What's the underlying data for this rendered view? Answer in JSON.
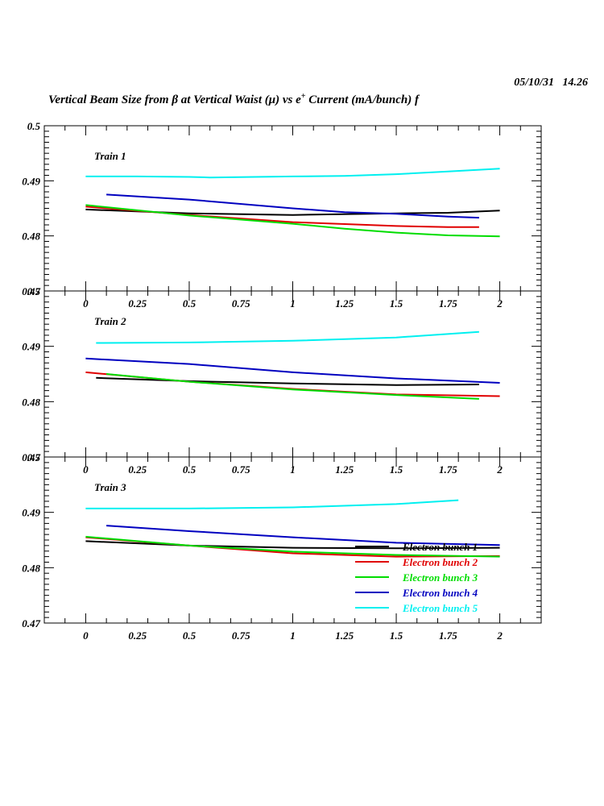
{
  "stamp": "05/10/31   14.26",
  "title": {
    "pre": "Vertical Beam Size from β at Vertical Waist (μ) vs e",
    "sup": "+",
    "post": " Current (mA/bunch) f"
  },
  "colors": {
    "bunch1": "#000000",
    "bunch2": "#e00000",
    "bunch3": "#00dd00",
    "bunch4": "#0000c0",
    "bunch5": "#00f0f0"
  },
  "chart_data": [
    {
      "type": "line",
      "label": "Train 1",
      "xlim": [
        -0.2,
        2.2
      ],
      "ylim": [
        0.47,
        0.5
      ],
      "x_ticks": [
        "0",
        "0.25",
        "0.5",
        "0.75",
        "1",
        "1.25",
        "1.5",
        "1.75",
        "2"
      ],
      "y_ticks": [
        "0.5",
        "0.49",
        "0.48",
        "0.47"
      ],
      "grid": false,
      "series": [
        {
          "key": "bunch1",
          "x": [
            0,
            0.5,
            1,
            1.5,
            1.75,
            2
          ],
          "y": [
            0.4848,
            0.4841,
            0.4838,
            0.4841,
            0.4842,
            0.4846
          ]
        },
        {
          "key": "bunch2",
          "x": [
            0,
            0.5,
            1,
            1.5,
            1.75,
            1.9
          ],
          "y": [
            0.4853,
            0.4838,
            0.4825,
            0.4818,
            0.4816,
            0.4816
          ]
        },
        {
          "key": "bunch3",
          "x": [
            0,
            0.5,
            1,
            1.25,
            1.5,
            1.75,
            2
          ],
          "y": [
            0.4856,
            0.4837,
            0.4822,
            0.4813,
            0.4806,
            0.4801,
            0.4799
          ]
        },
        {
          "key": "bunch4",
          "x": [
            0.1,
            0.5,
            1,
            1.25,
            1.5,
            1.75,
            1.9
          ],
          "y": [
            0.4875,
            0.4866,
            0.485,
            0.4843,
            0.484,
            0.4835,
            0.4833
          ]
        },
        {
          "key": "bunch5",
          "x": [
            0,
            0.25,
            0.5,
            0.6,
            1,
            1.25,
            1.5,
            1.75,
            2
          ],
          "y": [
            0.4908,
            0.4908,
            0.4907,
            0.4906,
            0.4908,
            0.4909,
            0.4912,
            0.4917,
            0.4922
          ]
        }
      ]
    },
    {
      "type": "line",
      "label": "Train 2",
      "xlim": [
        -0.2,
        2.2
      ],
      "ylim": [
        0.47,
        0.5
      ],
      "x_ticks": [
        "0",
        "0.25",
        "0.5",
        "0.75",
        "1",
        "1.25",
        "1.5",
        "1.75",
        "2"
      ],
      "y_ticks": [
        "0.5",
        "0.49",
        "0.48",
        "0.47"
      ],
      "grid": false,
      "series": [
        {
          "key": "bunch1",
          "x": [
            0.05,
            0.5,
            1,
            1.5,
            1.9
          ],
          "y": [
            0.4843,
            0.4837,
            0.4833,
            0.483,
            0.4831
          ]
        },
        {
          "key": "bunch2",
          "x": [
            0,
            0.5,
            1,
            1.5,
            2
          ],
          "y": [
            0.4853,
            0.4836,
            0.4823,
            0.4813,
            0.481
          ]
        },
        {
          "key": "bunch3",
          "x": [
            0.1,
            0.5,
            1,
            1.5,
            1.9
          ],
          "y": [
            0.485,
            0.4836,
            0.4822,
            0.4812,
            0.4805
          ]
        },
        {
          "key": "bunch4",
          "x": [
            0,
            0.5,
            1,
            1.5,
            2
          ],
          "y": [
            0.4878,
            0.4868,
            0.4853,
            0.4842,
            0.4834
          ]
        },
        {
          "key": "bunch5",
          "x": [
            0.05,
            0.5,
            1,
            1.5,
            1.9
          ],
          "y": [
            0.4906,
            0.4907,
            0.491,
            0.4916,
            0.4926
          ]
        }
      ]
    },
    {
      "type": "line",
      "label": "Train 3",
      "xlim": [
        -0.2,
        2.2
      ],
      "ylim": [
        0.47,
        0.5
      ],
      "x_ticks": [
        "0",
        "0.25",
        "0.5",
        "0.75",
        "1",
        "1.25",
        "1.5",
        "1.75",
        "2"
      ],
      "y_ticks": [
        "0.5",
        "0.49",
        "0.48",
        "0.47"
      ],
      "grid": false,
      "legend_position": "bottom-right",
      "series": [
        {
          "key": "bunch1",
          "name": "Electron bunch 1",
          "x": [
            0,
            0.5,
            1,
            1.5,
            2
          ],
          "y": [
            0.4848,
            0.484,
            0.4836,
            0.4835,
            0.4836
          ]
        },
        {
          "key": "bunch2",
          "name": "Electron bunch 2",
          "x": [
            0,
            0.5,
            1,
            1.5,
            2
          ],
          "y": [
            0.4855,
            0.484,
            0.4826,
            0.482,
            0.4821
          ]
        },
        {
          "key": "bunch3",
          "name": "Electron bunch 3",
          "x": [
            0,
            0.5,
            1,
            1.5,
            2
          ],
          "y": [
            0.4856,
            0.484,
            0.4829,
            0.4823,
            0.482
          ]
        },
        {
          "key": "bunch4",
          "name": "Electron bunch 4",
          "x": [
            0.1,
            0.5,
            1,
            1.5,
            2
          ],
          "y": [
            0.4876,
            0.4866,
            0.4855,
            0.4845,
            0.4841
          ]
        },
        {
          "key": "bunch5",
          "name": "Electron bunch 5",
          "x": [
            0,
            0.5,
            1,
            1.5,
            1.8
          ],
          "y": [
            0.4907,
            0.4907,
            0.4909,
            0.4915,
            0.4922
          ]
        }
      ]
    }
  ]
}
